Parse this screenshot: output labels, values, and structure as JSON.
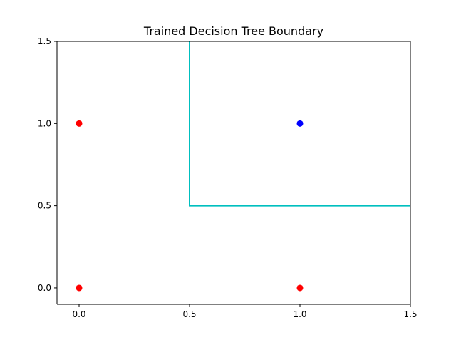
{
  "chart_data": {
    "type": "scatter",
    "title": "Trained Decision Tree Boundary",
    "xlabel": "",
    "ylabel": "",
    "xlim": [
      -0.1,
      1.5
    ],
    "ylim": [
      -0.1,
      1.5
    ],
    "xticks": [
      {
        "value": 0.0,
        "label": "0.0"
      },
      {
        "value": 0.5,
        "label": "0.5"
      },
      {
        "value": 1.0,
        "label": "1.0"
      },
      {
        "value": 1.5,
        "label": "1.5"
      }
    ],
    "yticks": [
      {
        "value": 0.0,
        "label": "0.0"
      },
      {
        "value": 0.5,
        "label": "0.5"
      },
      {
        "value": 1.0,
        "label": "1.0"
      },
      {
        "value": 1.5,
        "label": "1.5"
      }
    ],
    "grid": false,
    "legend": "none",
    "series": [
      {
        "color": "#ff0000",
        "points": [
          {
            "x": 0,
            "y": 0
          },
          {
            "x": 0,
            "y": 1
          },
          {
            "x": 1,
            "y": 0
          }
        ]
      },
      {
        "color": "#0000ff",
        "points": [
          {
            "x": 1,
            "y": 1
          }
        ]
      }
    ],
    "boundary": {
      "color": "#00bfbf",
      "points": [
        {
          "x": 0.5,
          "y": 1.5
        },
        {
          "x": 0.5,
          "y": 0.5
        },
        {
          "x": 1.5,
          "y": 0.5
        }
      ]
    }
  }
}
